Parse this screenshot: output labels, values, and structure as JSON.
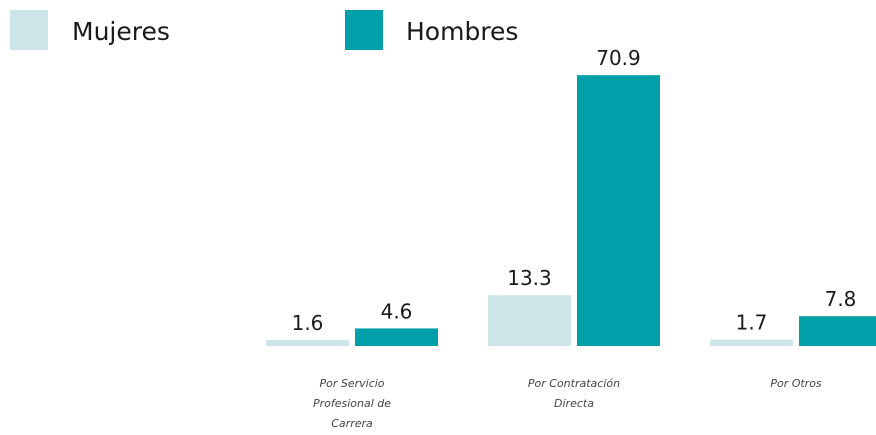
{
  "colors": {
    "mujeres": "#cde5e8",
    "hombres": "#009faa"
  },
  "chart_data": {
    "type": "bar",
    "categories": [
      "Por Servicio Profesional de Carrera",
      "Por Contratación Directa",
      "Por Otros"
    ],
    "category_lines": [
      [
        "Por Servicio",
        "Profesional de",
        "Carrera"
      ],
      [
        "Por Contratación",
        "Directa"
      ],
      [
        "Por Otros"
      ]
    ],
    "series": [
      {
        "name": "Mujeres",
        "values": [
          1.6,
          13.3,
          1.7
        ],
        "labels": [
          "1.6",
          "13.3",
          "1.7"
        ]
      },
      {
        "name": "Hombres",
        "values": [
          4.6,
          70.9,
          7.8
        ],
        "labels": [
          "4.6",
          "70.9",
          "7.8"
        ]
      }
    ],
    "legend": "top-left",
    "grid": false
  }
}
